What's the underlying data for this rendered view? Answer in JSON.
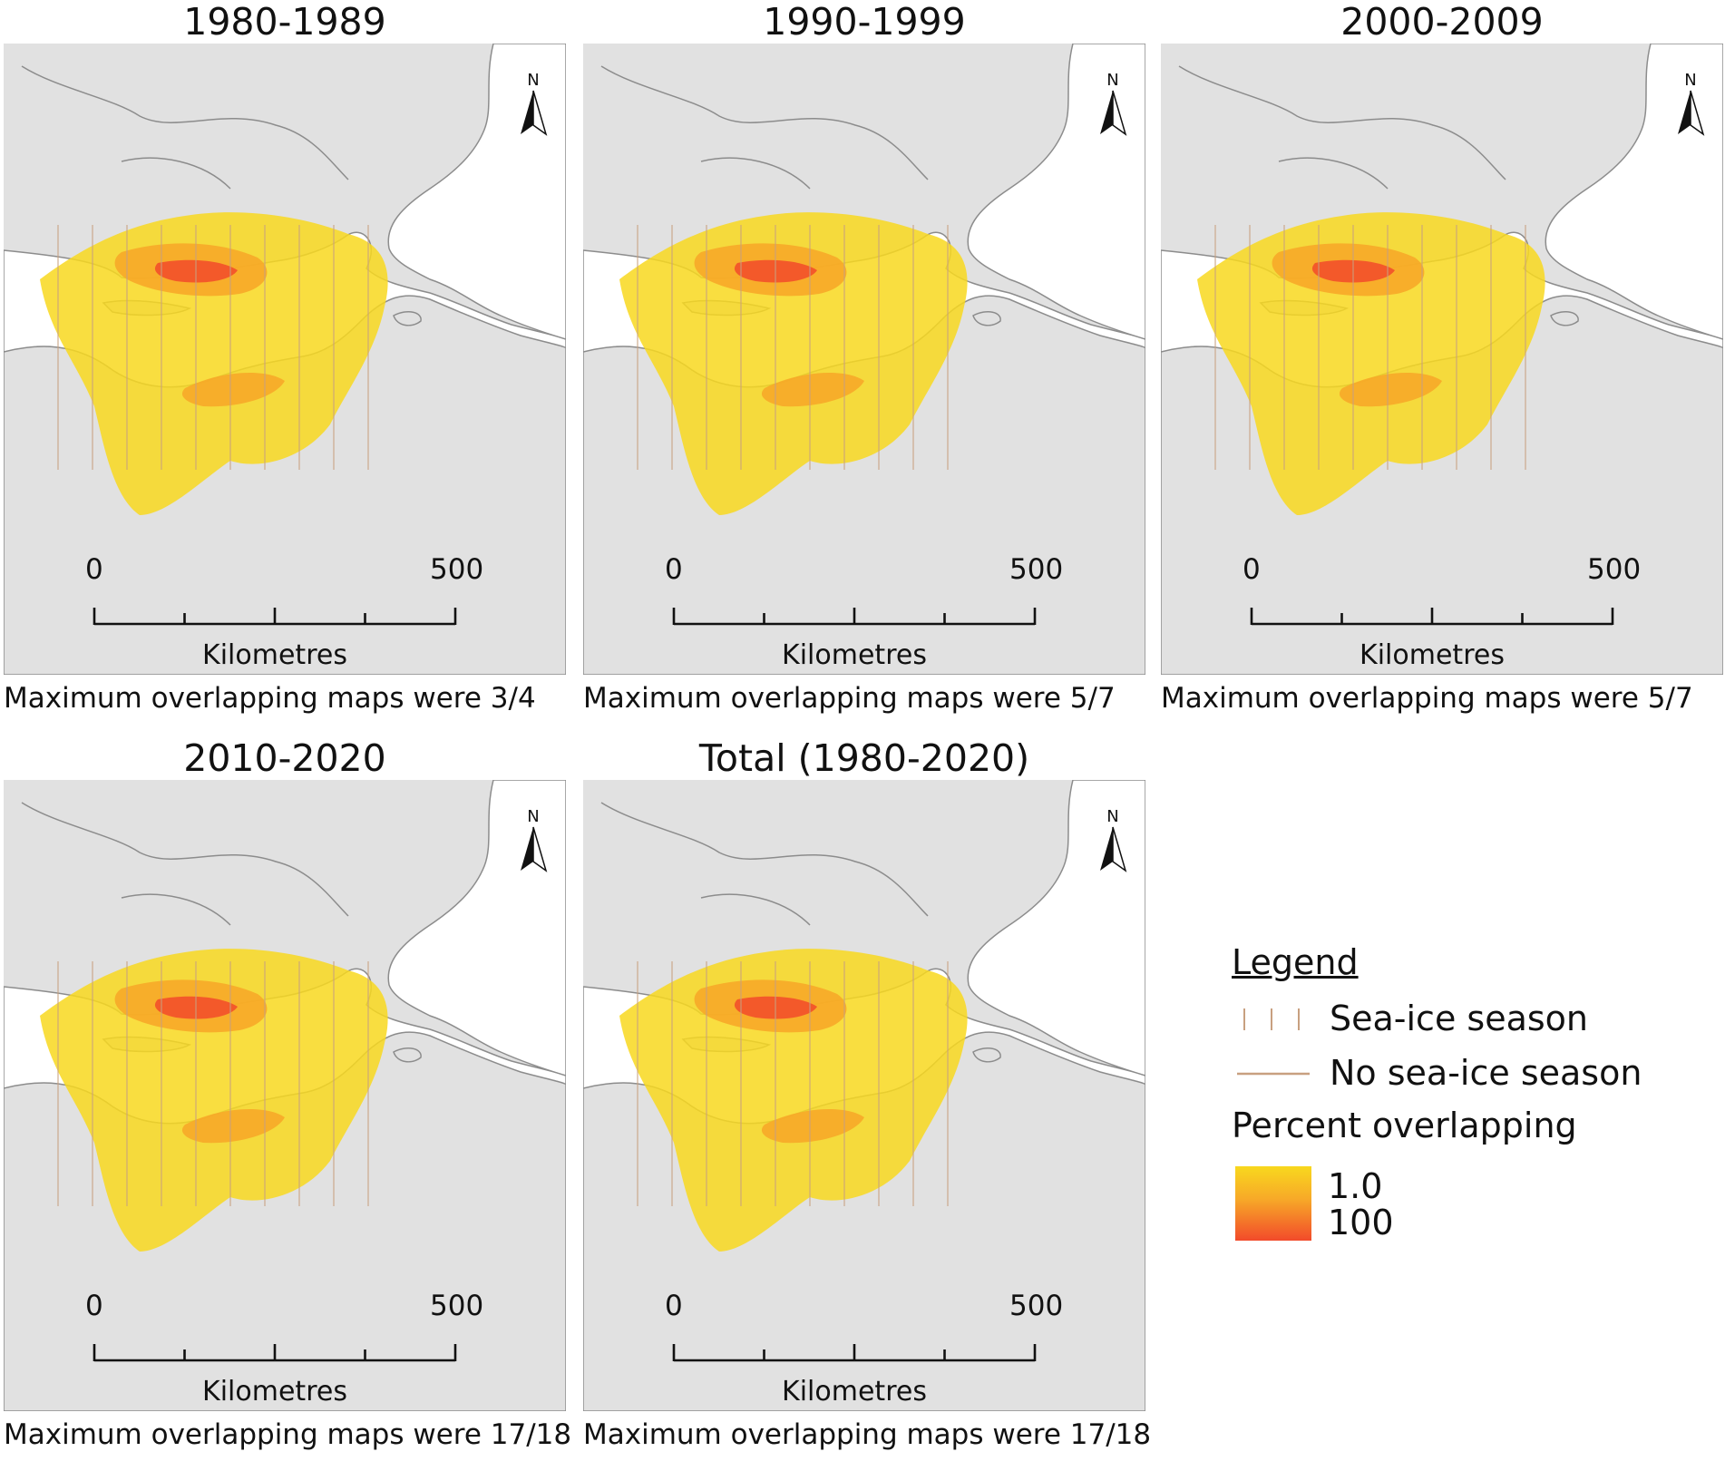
{
  "panels": [
    {
      "title": "1980-1989",
      "caption": "Maximum overlapping maps were 3/4",
      "scale_start": "0",
      "scale_end": "500",
      "scale_unit": "Kilometres",
      "north": "N"
    },
    {
      "title": "1990-1999",
      "caption": "Maximum overlapping maps were 5/7",
      "scale_start": "0",
      "scale_end": "500",
      "scale_unit": "Kilometres",
      "north": "N"
    },
    {
      "title": "2000-2009",
      "caption": "Maximum overlapping maps were 5/7",
      "scale_start": "0",
      "scale_end": "500",
      "scale_unit": "Kilometres",
      "north": "N"
    },
    {
      "title": "2010-2020",
      "caption": "Maximum overlapping maps were 17/18",
      "scale_start": "0",
      "scale_end": "500",
      "scale_unit": "Kilometres",
      "north": "N"
    },
    {
      "title": "Total (1980-2020)",
      "caption": "Maximum overlapping maps were 17/18",
      "scale_start": "0",
      "scale_end": "500",
      "scale_unit": "Kilometres",
      "north": "N"
    }
  ],
  "legend": {
    "title": "Legend",
    "sea_ice": "Sea-ice season",
    "no_sea_ice": "No sea-ice season",
    "percent_title": "Percent overlapping",
    "low": "1.0",
    "high": "100"
  },
  "colors": {
    "land": "#e1e1e1",
    "water": "#ffffff",
    "coast": "#8c8c8c",
    "low": "#f8d81e",
    "mid": "#f7a828",
    "high": "#f24a2a",
    "hatch": "#c8a080"
  }
}
